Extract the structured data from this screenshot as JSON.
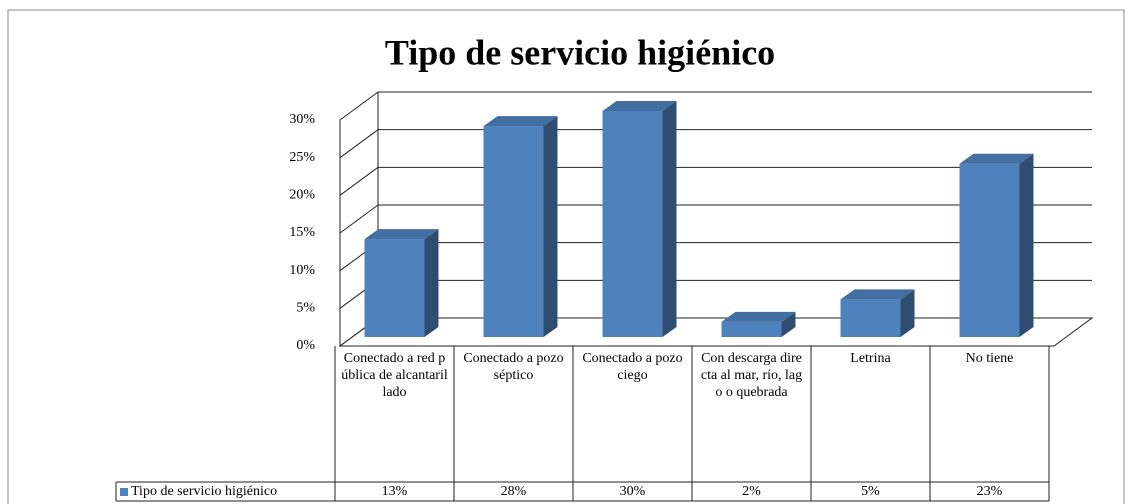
{
  "chart_data": {
    "type": "bar3d",
    "title": "Tipo de servicio higiénico",
    "categories": [
      "Conectado a red pública de alcantarillado",
      "Conectado a pozo séptico",
      "Conectado a pozo ciego",
      "Con descarga directa al mar, río, lago o quebrada",
      "Letrina",
      "No tiene"
    ],
    "series": [
      {
        "name": "Tipo de servicio higiénico",
        "color": "#4f81bd",
        "values": [
          13,
          28,
          30,
          2,
          5,
          23
        ],
        "value_labels": [
          "13%",
          "28%",
          "30%",
          "2%",
          "5%",
          "23%"
        ]
      }
    ],
    "ylim": [
      0,
      30
    ],
    "yticks": [
      {
        "value": 0,
        "label": "0%"
      },
      {
        "value": 5,
        "label": "5%"
      },
      {
        "value": 10,
        "label": "10%"
      },
      {
        "value": 15,
        "label": "15%"
      },
      {
        "value": 20,
        "label": "20%"
      },
      {
        "value": 25,
        "label": "25%"
      },
      {
        "value": 30,
        "label": "30%"
      }
    ],
    "grid": true,
    "data_table": true
  }
}
